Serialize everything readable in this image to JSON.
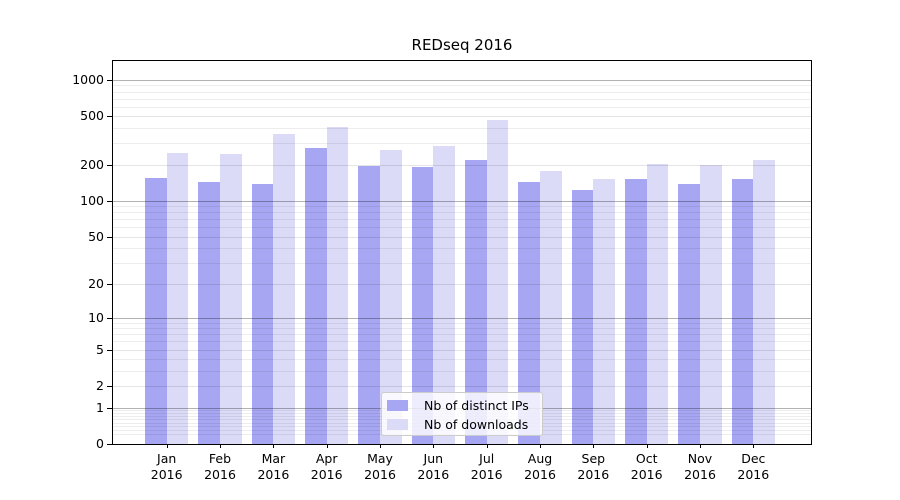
{
  "chart_data": {
    "type": "bar",
    "title": "REDseq 2016",
    "x_months": [
      "Jan",
      "Feb",
      "Mar",
      "Apr",
      "May",
      "Jun",
      "Jul",
      "Aug",
      "Sep",
      "Oct",
      "Nov",
      "Dec"
    ],
    "x_year": "2016",
    "series": [
      {
        "name": "Nb of distinct IPs",
        "color": "#a6a6f3",
        "values": [
          154,
          143,
          138,
          276,
          196,
          192,
          220,
          142,
          124,
          152,
          138,
          151
        ]
      },
      {
        "name": "Nb of downloads",
        "color": "#dbdbf8",
        "values": [
          249,
          243,
          360,
          408,
          266,
          285,
          466,
          176,
          152,
          202,
          200,
          216
        ]
      }
    ],
    "y_ticks": [
      0,
      1,
      2,
      5,
      10,
      20,
      50,
      100,
      200,
      500,
      1000
    ],
    "y_scale": "log1p",
    "ylim": [
      0,
      1430
    ],
    "grid": "both",
    "grid_major_values": [
      1,
      10,
      100,
      1000
    ],
    "legend_position": "inside-lower-center",
    "axis_color": "#000000"
  }
}
